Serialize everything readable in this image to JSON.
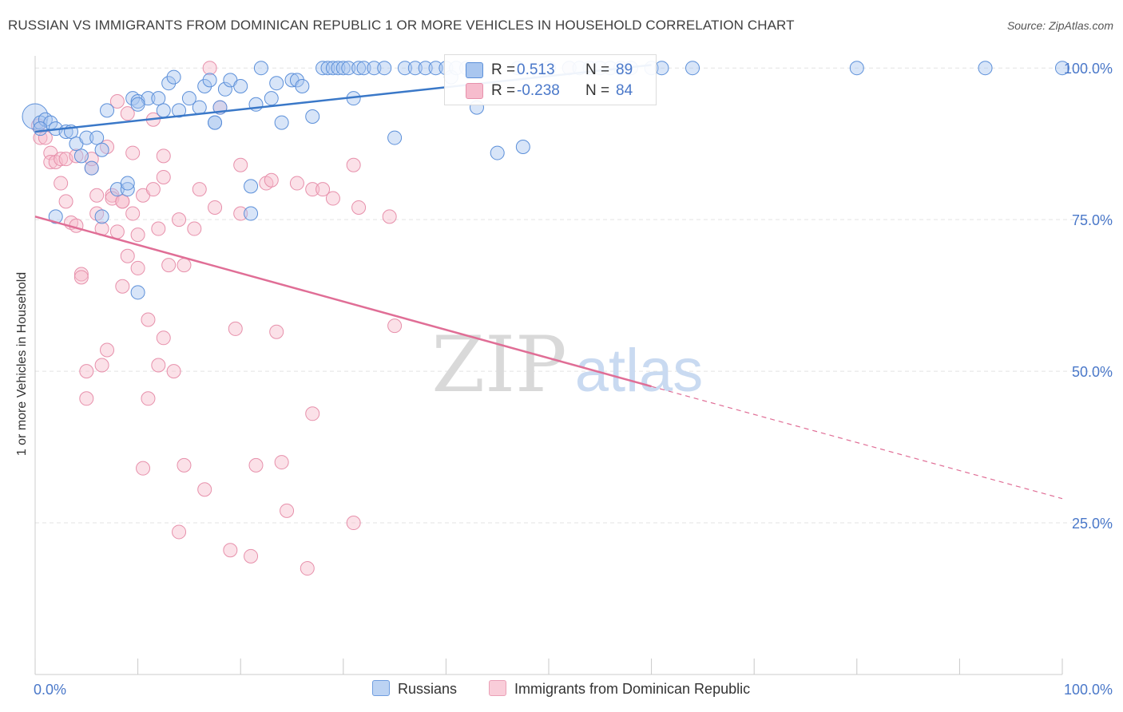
{
  "title": "RUSSIAN VS IMMIGRANTS FROM DOMINICAN REPUBLIC 1 OR MORE VEHICLES IN HOUSEHOLD CORRELATION CHART",
  "source": "Source: ZipAtlas.com",
  "watermark": {
    "zip": "ZIP",
    "atlas": "atlas"
  },
  "colors": {
    "blue_fill": "#a9c6ef",
    "blue_stroke": "#5b8fd9",
    "blue_line": "#3a78c8",
    "pink_fill": "#f6bccd",
    "pink_stroke": "#e790ab",
    "pink_line": "#e06e96",
    "grid": "#e3e3e3",
    "tick_label": "#4a78c9"
  },
  "legend": [
    {
      "r_label": "R =",
      "r_value": " 0.513",
      "n_label": "N =",
      "n_value": "89"
    },
    {
      "r_label": "R =",
      "r_value": "-0.238",
      "n_label": "N =",
      "n_value": "84"
    }
  ],
  "bottom_legend": [
    "Russians",
    "Immigrants from Dominican Republic"
  ],
  "chart_data": {
    "type": "scatter",
    "title": "RUSSIAN VS IMMIGRANTS FROM DOMINICAN REPUBLIC 1 OR MORE VEHICLES IN HOUSEHOLD CORRELATION CHART",
    "xlabel": "",
    "ylabel": "1 or more Vehicles in Household",
    "xlim": [
      0,
      100
    ],
    "ylim": [
      0,
      102
    ],
    "x_tick_labels": [
      "0.0%",
      "100.0%"
    ],
    "y_ticks": [
      25,
      50,
      75,
      100
    ],
    "y_tick_labels": [
      "25.0%",
      "50.0%",
      "75.0%",
      "100.0%"
    ],
    "grid": true,
    "series": [
      {
        "name": "Russians",
        "r": 0.513,
        "n": 89,
        "trend": {
          "x0": 0,
          "y0": 89.5,
          "x1": 60,
          "y1": 100.5
        },
        "points": [
          [
            0,
            92
          ],
          [
            0.5,
            91
          ],
          [
            1,
            91.5
          ],
          [
            1.5,
            91
          ],
          [
            2,
            90
          ],
          [
            3,
            89.5
          ],
          [
            3.5,
            89.5
          ],
          [
            4,
            87.5
          ],
          [
            4.5,
            85.5
          ],
          [
            5,
            88.5
          ],
          [
            5.5,
            83.5
          ],
          [
            6,
            88.5
          ],
          [
            6.5,
            86.5
          ],
          [
            7,
            93
          ],
          [
            8,
            80
          ],
          [
            9,
            80
          ],
          [
            9.5,
            95
          ],
          [
            10,
            94.5
          ],
          [
            11,
            95
          ],
          [
            12,
            95
          ],
          [
            12.5,
            93
          ],
          [
            13,
            97.5
          ],
          [
            13.5,
            98.5
          ],
          [
            14,
            93
          ],
          [
            15,
            95
          ],
          [
            16,
            93.5
          ],
          [
            16.5,
            97
          ],
          [
            17,
            98
          ],
          [
            17.5,
            91
          ],
          [
            18,
            93.5
          ],
          [
            18.5,
            96.5
          ],
          [
            19,
            98
          ],
          [
            20,
            97
          ],
          [
            21,
            76
          ],
          [
            21.5,
            94
          ],
          [
            22,
            100
          ],
          [
            23,
            95
          ],
          [
            23.5,
            97.5
          ],
          [
            24,
            91
          ],
          [
            25,
            98
          ],
          [
            25.5,
            98
          ],
          [
            26,
            97
          ],
          [
            27,
            92
          ],
          [
            28,
            100
          ],
          [
            28.5,
            100
          ],
          [
            29,
            100
          ],
          [
            29.5,
            100
          ],
          [
            30,
            100
          ],
          [
            30.5,
            100
          ],
          [
            31,
            95
          ],
          [
            31.5,
            100
          ],
          [
            32,
            100
          ],
          [
            33,
            100
          ],
          [
            34,
            100
          ],
          [
            35,
            88.5
          ],
          [
            36,
            100
          ],
          [
            37,
            100
          ],
          [
            38,
            100
          ],
          [
            39,
            100
          ],
          [
            40,
            100
          ],
          [
            40.5,
            98.5
          ],
          [
            41,
            100
          ],
          [
            42,
            100
          ],
          [
            42.5,
            100
          ],
          [
            43,
            93.5
          ],
          [
            45,
            86
          ],
          [
            47,
            100
          ],
          [
            47.5,
            87
          ],
          [
            49,
            99.5
          ],
          [
            50,
            100
          ],
          [
            52,
            100
          ],
          [
            53,
            100
          ],
          [
            54,
            100
          ],
          [
            55,
            100
          ],
          [
            56,
            100
          ],
          [
            57,
            100
          ],
          [
            58,
            100
          ],
          [
            60,
            100
          ],
          [
            61,
            100
          ],
          [
            64,
            100
          ],
          [
            80,
            100
          ],
          [
            92.5,
            100
          ],
          [
            100,
            100
          ],
          [
            0.5,
            90
          ],
          [
            2,
            75.5
          ],
          [
            6.5,
            75.5
          ],
          [
            9,
            81
          ],
          [
            10,
            63
          ],
          [
            17.5,
            91
          ],
          [
            21,
            80.5
          ],
          [
            10,
            94
          ]
        ]
      },
      {
        "name": "Immigrants from Dominican Republic",
        "r": -0.238,
        "n": 84,
        "trend": {
          "x0": 0,
          "y0": 75.5,
          "x1": 60,
          "y1": 47.5,
          "dash_x1": 100,
          "dash_y1": 29
        },
        "points": [
          [
            0.3,
            90.5
          ],
          [
            0.5,
            88.5
          ],
          [
            1,
            88.5
          ],
          [
            1.5,
            86
          ],
          [
            1.5,
            84.5
          ],
          [
            2,
            84.5
          ],
          [
            2.5,
            81
          ],
          [
            2.5,
            85
          ],
          [
            3,
            78
          ],
          [
            3,
            85
          ],
          [
            3.5,
            74.5
          ],
          [
            4,
            74
          ],
          [
            4,
            85.5
          ],
          [
            4.5,
            66
          ],
          [
            4.5,
            65.5
          ],
          [
            5,
            50
          ],
          [
            5,
            45.5
          ],
          [
            5.5,
            83.5
          ],
          [
            5.5,
            85
          ],
          [
            6,
            76
          ],
          [
            6,
            79
          ],
          [
            6.5,
            51
          ],
          [
            6.5,
            73.5
          ],
          [
            7,
            87
          ],
          [
            7,
            53.5
          ],
          [
            7.5,
            79
          ],
          [
            7.5,
            78.5
          ],
          [
            8,
            73
          ],
          [
            8,
            94.5
          ],
          [
            8.5,
            64
          ],
          [
            8.5,
            78
          ],
          [
            8.5,
            78
          ],
          [
            9,
            69
          ],
          [
            9,
            92.5
          ],
          [
            9.5,
            76
          ],
          [
            9.5,
            86
          ],
          [
            10,
            72.5
          ],
          [
            10,
            67
          ],
          [
            10.5,
            79
          ],
          [
            10.5,
            34
          ],
          [
            11,
            58.5
          ],
          [
            11,
            45.5
          ],
          [
            11.5,
            91.5
          ],
          [
            11.5,
            80
          ],
          [
            12,
            73.5
          ],
          [
            12,
            51
          ],
          [
            12.5,
            85.5
          ],
          [
            12.5,
            82
          ],
          [
            12.5,
            55.5
          ],
          [
            13,
            67.5
          ],
          [
            13.5,
            50
          ],
          [
            14,
            75
          ],
          [
            14,
            23.5
          ],
          [
            14.5,
            67.5
          ],
          [
            14.5,
            34.5
          ],
          [
            15.5,
            73.5
          ],
          [
            16,
            80
          ],
          [
            16.5,
            30.5
          ],
          [
            17,
            100
          ],
          [
            17.5,
            77
          ],
          [
            18,
            93.5
          ],
          [
            19,
            20.5
          ],
          [
            19.5,
            57
          ],
          [
            20,
            84
          ],
          [
            20,
            76
          ],
          [
            21,
            19.5
          ],
          [
            21.5,
            34.5
          ],
          [
            22.5,
            81
          ],
          [
            23,
            81.5
          ],
          [
            23.5,
            56.5
          ],
          [
            24,
            35
          ],
          [
            24.5,
            27
          ],
          [
            25.5,
            81
          ],
          [
            26.5,
            17.5
          ],
          [
            27,
            80
          ],
          [
            27,
            43
          ],
          [
            28,
            80
          ],
          [
            29,
            78.5
          ],
          [
            31,
            25
          ],
          [
            31.5,
            77
          ],
          [
            31,
            84
          ],
          [
            34.5,
            75.5
          ],
          [
            35,
            57.5
          ],
          [
            52,
            100
          ]
        ]
      }
    ]
  }
}
